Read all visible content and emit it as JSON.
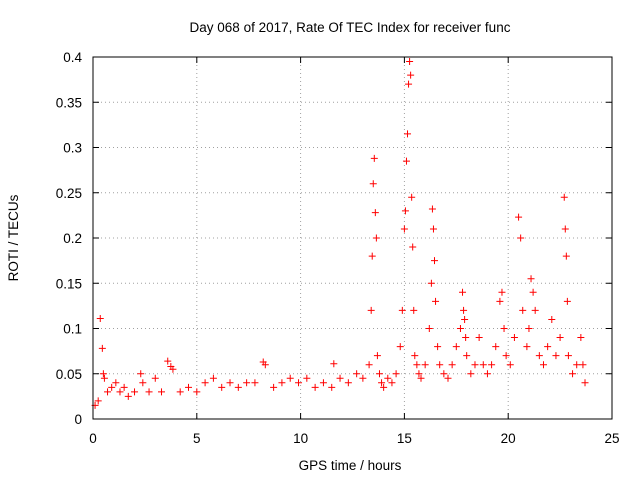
{
  "chart_data": {
    "type": "scatter",
    "title": "Day 068 of 2017, Rate Of TEC Index for receiver func",
    "xlabel": "GPS time / hours",
    "ylabel": "ROTI / TECUs",
    "xlim": [
      0,
      25
    ],
    "ylim": [
      0,
      0.4
    ],
    "xticks": [
      0,
      5,
      10,
      15,
      20,
      25
    ],
    "yticks": [
      0,
      0.05,
      0.1,
      0.15,
      0.2,
      0.25,
      0.3,
      0.35,
      0.4
    ],
    "grid": true,
    "marker": "+",
    "series_color": "#ff0000",
    "series": [
      {
        "x": [
          0.1,
          0.25,
          0.35,
          0.45,
          0.5,
          0.55,
          0.7,
          0.9,
          1.1,
          1.3,
          1.5,
          1.7,
          2.0,
          2.3,
          2.4,
          2.7,
          3.0,
          3.3,
          3.6,
          3.75,
          3.85,
          4.2,
          4.6,
          5.0,
          5.4,
          5.8,
          6.2,
          6.6,
          7.0,
          7.4,
          7.8,
          8.2,
          8.3,
          8.7,
          9.1,
          9.5,
          9.9,
          10.3,
          10.7,
          11.1,
          11.5,
          11.6,
          11.9,
          12.3,
          12.7,
          13.0,
          13.3,
          13.4,
          13.45,
          13.5,
          13.55,
          13.6,
          13.65,
          13.7,
          13.8,
          13.9,
          14.0,
          14.2,
          14.4,
          14.6,
          14.8,
          14.9,
          15.0,
          15.05,
          15.1,
          15.15,
          15.2,
          15.25,
          15.3,
          15.35,
          15.4,
          15.45,
          15.5,
          15.6,
          15.7,
          15.8,
          16.0,
          16.2,
          16.3,
          16.35,
          16.4,
          16.45,
          16.5,
          16.6,
          16.7,
          16.9,
          17.1,
          17.3,
          17.5,
          17.7,
          17.8,
          17.85,
          17.9,
          17.95,
          18.0,
          18.2,
          18.4,
          18.6,
          18.8,
          19.0,
          19.2,
          19.4,
          19.6,
          19.7,
          19.8,
          19.9,
          20.1,
          20.3,
          20.5,
          20.6,
          20.7,
          20.9,
          21.0,
          21.1,
          21.2,
          21.3,
          21.5,
          21.7,
          21.9,
          22.1,
          22.3,
          22.5,
          22.7,
          22.75,
          22.8,
          22.85,
          22.9,
          23.1,
          23.3,
          23.5,
          23.6,
          23.7
        ],
        "y": [
          0.015,
          0.02,
          0.111,
          0.078,
          0.05,
          0.045,
          0.03,
          0.035,
          0.04,
          0.03,
          0.035,
          0.025,
          0.03,
          0.05,
          0.04,
          0.03,
          0.045,
          0.03,
          0.064,
          0.058,
          0.055,
          0.03,
          0.035,
          0.03,
          0.04,
          0.045,
          0.035,
          0.04,
          0.035,
          0.04,
          0.04,
          0.063,
          0.06,
          0.035,
          0.04,
          0.045,
          0.04,
          0.045,
          0.035,
          0.04,
          0.035,
          0.061,
          0.045,
          0.04,
          0.05,
          0.045,
          0.06,
          0.12,
          0.18,
          0.26,
          0.288,
          0.228,
          0.2,
          0.07,
          0.05,
          0.04,
          0.035,
          0.045,
          0.04,
          0.05,
          0.08,
          0.12,
          0.21,
          0.23,
          0.285,
          0.315,
          0.37,
          0.395,
          0.38,
          0.245,
          0.19,
          0.12,
          0.07,
          0.06,
          0.05,
          0.045,
          0.06,
          0.1,
          0.15,
          0.232,
          0.21,
          0.175,
          0.13,
          0.08,
          0.06,
          0.05,
          0.045,
          0.06,
          0.08,
          0.1,
          0.14,
          0.12,
          0.11,
          0.09,
          0.07,
          0.05,
          0.06,
          0.09,
          0.06,
          0.05,
          0.06,
          0.08,
          0.13,
          0.14,
          0.1,
          0.07,
          0.06,
          0.09,
          0.223,
          0.2,
          0.12,
          0.08,
          0.1,
          0.155,
          0.14,
          0.12,
          0.07,
          0.06,
          0.08,
          0.11,
          0.07,
          0.09,
          0.245,
          0.21,
          0.18,
          0.13,
          0.07,
          0.05,
          0.06,
          0.09,
          0.06,
          0.04
        ]
      }
    ]
  }
}
